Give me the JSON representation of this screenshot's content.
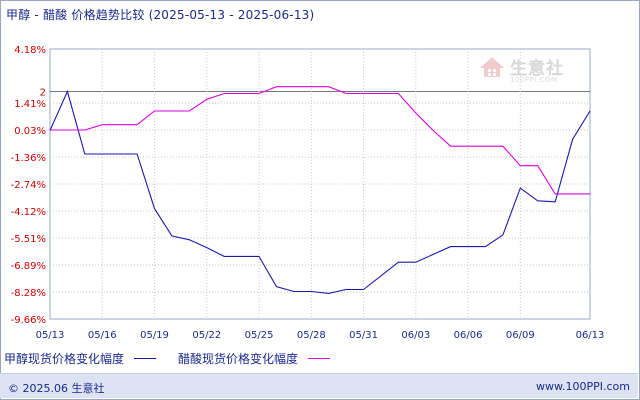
{
  "title": {
    "text": "甲醇 - 醋酸 价格趋势比较",
    "date_range": "(2025-05-13 - 2025-06-13)"
  },
  "watermark": {
    "text": "生意社",
    "url": "100PPI.COM"
  },
  "footer": {
    "copyright": "© 2025.06 生意社",
    "site": "www.100PPI.com"
  },
  "colors": {
    "series1": "#1a1aa8",
    "series2": "#e000e0",
    "axis_text": "#cc0000",
    "tick_text": "#1a2a8a"
  },
  "chart_data": {
    "type": "line",
    "ylim": [
      -9.66,
      4.18
    ],
    "y_ticks": [
      4.18,
      2,
      1.41,
      0.03,
      -1.36,
      -2.74,
      -4.12,
      -5.51,
      -6.89,
      -8.28,
      -9.66
    ],
    "y_tick_labels": [
      "4.18%",
      "2",
      "1.41%",
      "0.03%",
      "-1.36%",
      "-2.74%",
      "-4.12%",
      "-5.51%",
      "-6.89%",
      "-8.28%",
      "-9.66%"
    ],
    "x_tick_labels": [
      "05/13",
      "05/16",
      "05/19",
      "05/22",
      "05/25",
      "05/28",
      "05/31",
      "06/03",
      "06/06",
      "06/09",
      "06/13"
    ],
    "x_range": [
      0,
      31
    ],
    "x_tick_days": [
      0,
      3,
      6,
      9,
      12,
      15,
      18,
      21,
      24,
      27,
      31
    ],
    "reference_line": 2,
    "grid": "horizontal-dotted",
    "legend_position": "bottom",
    "series": [
      {
        "name": "甲醇现货价格变化幅度",
        "x": [
          0,
          1,
          2,
          5,
          6,
          7,
          8,
          9,
          10,
          12,
          13,
          14,
          15,
          16,
          17,
          18,
          20,
          21,
          22,
          23,
          24,
          25,
          26,
          27,
          28,
          29,
          30,
          31
        ],
        "y": [
          0,
          2,
          -1.2,
          -1.2,
          -4,
          -5.4,
          -5.6,
          -6.0,
          -6.45,
          -6.45,
          -8.0,
          -8.25,
          -8.25,
          -8.35,
          -8.15,
          -8.15,
          -6.75,
          -6.75,
          -6.35,
          -5.95,
          -5.95,
          -5.95,
          -5.35,
          -2.95,
          -3.6,
          -3.65,
          -0.45,
          1.0
        ]
      },
      {
        "name": "醋酸现货价格变化幅度",
        "x": [
          0,
          1,
          2,
          3,
          4,
          5,
          6,
          7,
          8,
          9,
          10,
          11,
          12,
          13,
          14,
          15,
          16,
          17,
          18,
          19,
          20,
          21,
          22,
          23,
          24,
          25,
          26,
          27,
          28,
          29,
          30,
          31
        ],
        "y": [
          0.03,
          0.03,
          0.03,
          0.3,
          0.3,
          0.3,
          1.0,
          1.0,
          1.0,
          1.6,
          1.9,
          1.9,
          1.9,
          2.25,
          2.25,
          2.25,
          2.25,
          1.9,
          1.9,
          1.9,
          1.9,
          0.9,
          0,
          -0.8,
          -0.8,
          -0.8,
          -0.8,
          -1.8,
          -1.8,
          -3.25,
          -3.25,
          -3.25
        ]
      }
    ]
  }
}
